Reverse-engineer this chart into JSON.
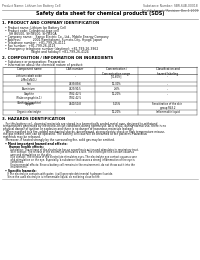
{
  "bg_color": "#ffffff",
  "header_top_left": "Product Name: Lithium Ion Battery Cell",
  "header_top_right": "Substance Number: SBR-64B-00018\nEstablishment / Revision: Dec.1 2009",
  "main_title": "Safety data sheet for chemical products (SDS)",
  "section1_title": "1. PRODUCT AND COMPANY IDENTIFICATION",
  "section1_lines": [
    "  • Product name: Lithium Ion Battery Cell",
    "  • Product code: Cylindrical-type cell",
    "      SH B6500, SH IB500, SH IB50A",
    "  • Company name:   Sanyo Electric Co., Ltd., Mobile Energy Company",
    "  • Address:            2001 Kamitakami, Sumoto-City, Hyogo, Japan",
    "  • Telephone number:  +81-799-26-4111",
    "  • Fax number:  +81-799-26-4123",
    "  • Emergency telephone number (daytime): +81-799-26-3962",
    "                            (Night and holiday): +81-799-26-4124"
  ],
  "section2_title": "2. COMPOSITION / INFORMATION ON INGREDIENTS",
  "section2_intro": "  • Substance or preparation: Preparation",
  "section2_sub": "  • Information about the chemical nature of product:",
  "table_col_names": [
    "Component name",
    "CAS number",
    "Concentration /\nConcentration range",
    "Classification and\nhazard labeling"
  ],
  "table_rows": [
    [
      "Lithium cobalt oxide\n(LiMnCoNiO₂)",
      "-",
      "[30-60%]",
      "-"
    ],
    [
      "Iron",
      "7439-89-6",
      "10-30%",
      "-"
    ],
    [
      "Aluminium",
      "7429-90-5",
      "2-6%",
      "-"
    ],
    [
      "Graphite\n(Flake or graphite-1)\n(Artificial graphite)",
      "7782-42-5\n7782-42-5",
      "10-20%",
      "-"
    ],
    [
      "Copper",
      "7440-50-8",
      "5-15%",
      "Sensitization of the skin\ngroup R43.2"
    ],
    [
      "Organic electrolyte",
      "-",
      "10-20%",
      "Inflammable liquid"
    ]
  ],
  "section3_title": "3. HAZARDS IDENTIFICATION",
  "section3_lines": [
    "   For this battery cell, chemical materials are stored in a hermetically sealed metal case, designed to withstand",
    "temperatures generated by electronic-circuit conditions during normal use. As a result, during normal use, there is no",
    "physical danger of ignition or explosion and there is no danger of hazardous materials leakage.",
    "   When exposed to a fire, added mechanical shocks, decomposed, strong electric shock or high temperature misuse,",
    "the gas release vent can be operated. The battery cell case will be breached at fire patterns. Hazardous",
    "materials may be released.",
    "   Moreover, if heated strongly by the surrounding fire, solid gas may be emitted."
  ],
  "section3_hazard": "  • Most important hazard and effects:",
  "section3_human": "      Human health effects:",
  "section3_human_lines": [
    "          Inhalation: The release of the electrolyte has an anaesthesia action and stimulates in respiratory tract.",
    "          Skin contact: The release of the electrolyte stimulates a skin. The electrolyte skin contact causes a",
    "          sore and stimulation on the skin.",
    "          Eye contact: The release of the electrolyte stimulates eyes. The electrolyte eye contact causes a sore",
    "          and stimulation on the eye. Especially, a substance that causes a strong inflammation of the eye is",
    "          contained.",
    "          Environmental effects: Since a battery cell remains in the environment, do not throw out it into the",
    "          environment."
  ],
  "section3_specific": "  • Specific hazards:",
  "section3_specific_lines": [
    "      If the electrolyte contacts with water, it will generate detrimental hydrogen fluoride.",
    "      Since the used electrolyte is inflammable liquid, do not bring close to fire."
  ],
  "footer_line": true
}
